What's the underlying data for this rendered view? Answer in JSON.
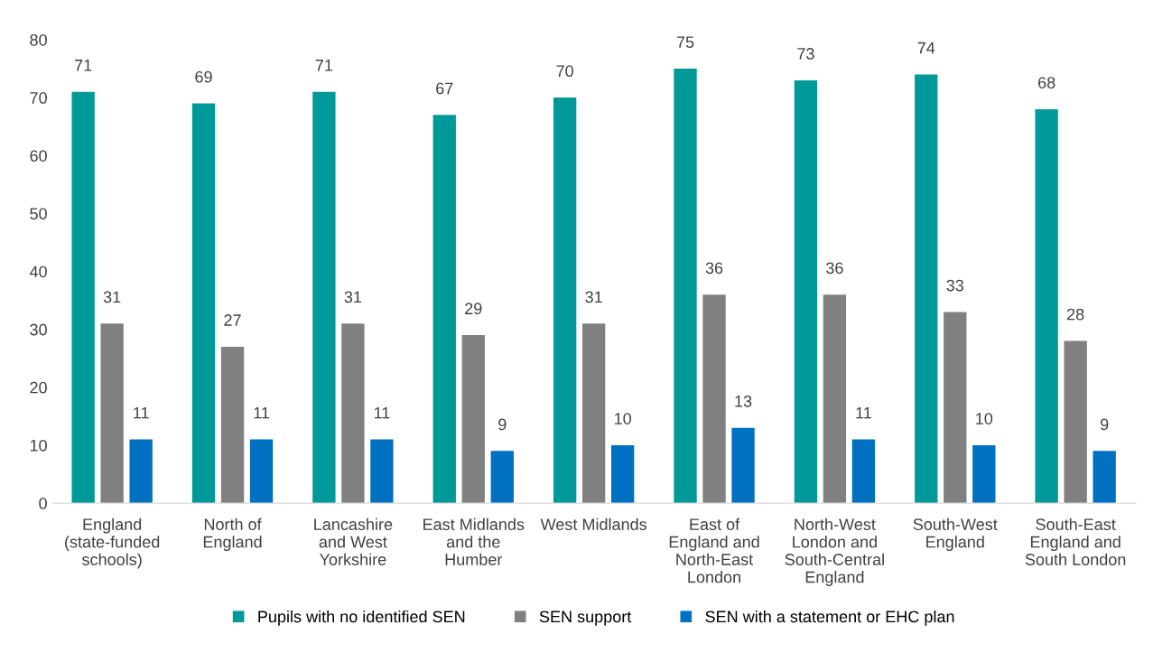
{
  "chart_data": {
    "type": "bar",
    "categories": [
      "England (state-funded schools)",
      "North of England",
      "Lancashire and West Yorkshire",
      "East Midlands and the Humber",
      "West Midlands",
      "East of England and North-East London",
      "North-West London and South-Central England",
      "South-West England",
      "South-East England and South London"
    ],
    "series": [
      {
        "name": "Pupils with no identified SEN",
        "color": "#009999",
        "values": [
          71,
          69,
          71,
          67,
          70,
          75,
          73,
          74,
          68
        ]
      },
      {
        "name": "SEN support",
        "color": "#808080",
        "values": [
          31,
          27,
          31,
          29,
          31,
          36,
          36,
          33,
          28
        ]
      },
      {
        "name": "SEN with a statement or EHC plan",
        "color": "#0070c0",
        "values": [
          11,
          11,
          11,
          9,
          10,
          13,
          11,
          10,
          9
        ]
      }
    ],
    "ylim": [
      0,
      80
    ],
    "yticks": [
      0,
      10,
      20,
      30,
      40,
      50,
      60,
      70,
      80
    ],
    "data_labels": true,
    "legend": "bottom",
    "grid": false
  }
}
